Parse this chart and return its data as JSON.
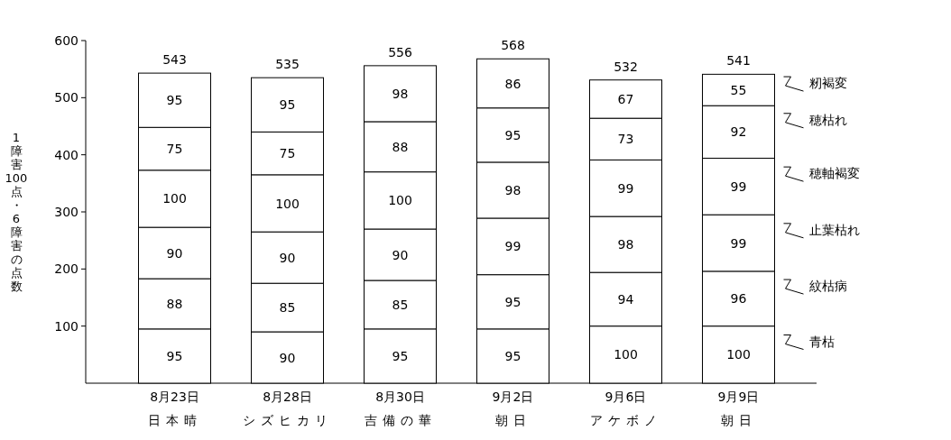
{
  "chart_data": {
    "type": "bar",
    "stacked": true,
    "ylabel": "1障害100点・6障害の点数",
    "categories": [
      "8月23日",
      "8月28日",
      "8月30日",
      "9月2日",
      "9月6日",
      "9月9日"
    ],
    "annotations": [
      "日本晴",
      "シズヒカリ",
      "吉備の華",
      "朝日",
      "アケボノ",
      "朝日"
    ],
    "series": [
      {
        "name": "青枯",
        "color": "#ffffff",
        "values": [
          95,
          90,
          95,
          95,
          100,
          100
        ]
      },
      {
        "name": "紋枯病",
        "color": "#ffffff",
        "values": [
          88,
          85,
          85,
          95,
          94,
          96
        ]
      },
      {
        "name": "止葉枯れ",
        "color": "#ffffff",
        "values": [
          90,
          90,
          90,
          99,
          98,
          99
        ]
      },
      {
        "name": "穂軸褐変",
        "color": "#ffffff",
        "values": [
          100,
          100,
          100,
          98,
          99,
          99
        ]
      },
      {
        "name": "穂枯れ",
        "color": "#ffffff",
        "values": [
          75,
          75,
          88,
          95,
          73,
          92
        ]
      },
      {
        "name": "籾褐変",
        "color": "#ffffff",
        "values": [
          95,
          95,
          98,
          86,
          67,
          55
        ]
      }
    ],
    "data_labels": true,
    "totals": [
      "543",
      "535",
      "556",
      "568",
      "532",
      "541"
    ],
    "ylim": [
      0,
      600
    ],
    "yticks": [
      100,
      200,
      300,
      400,
      500,
      600
    ],
    "legend": "right",
    "grid": false
  }
}
